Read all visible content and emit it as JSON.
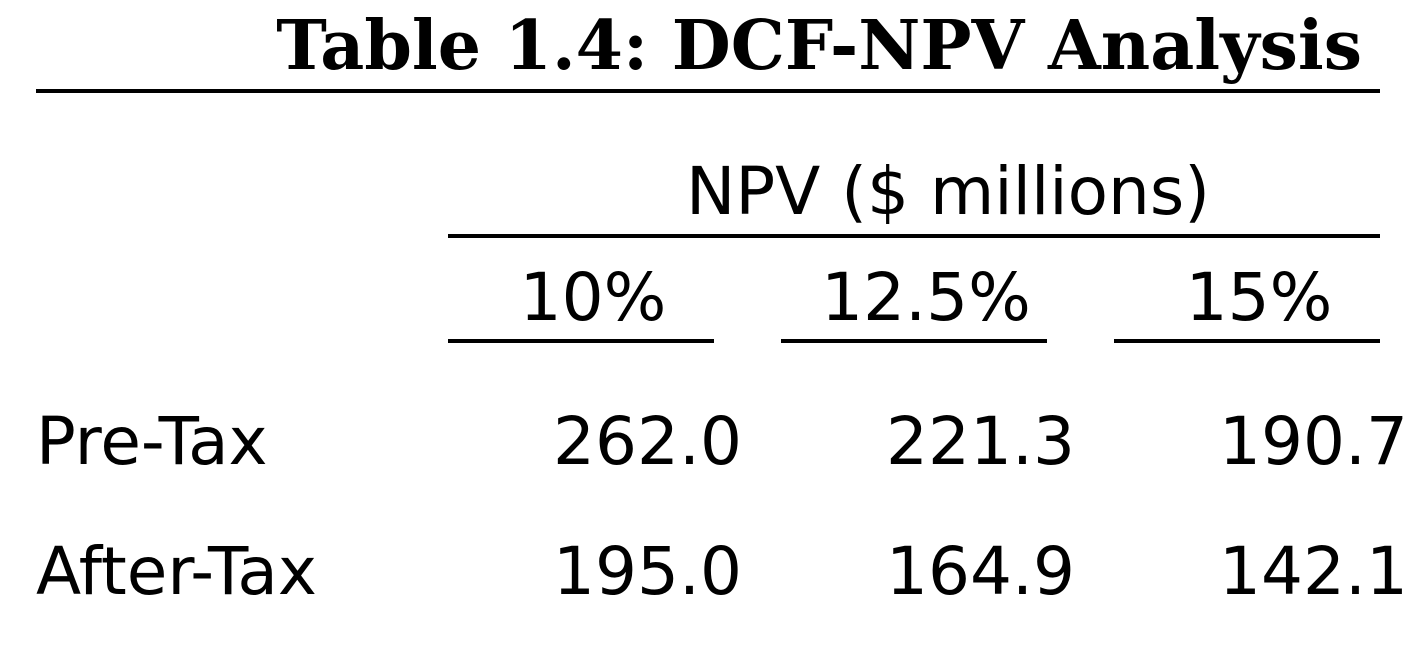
{
  "title": "Table 1.4: DCF-NPV Analysis",
  "group_header": "NPV ($ millions)",
  "columns": [
    "10%",
    "12.5%",
    "15%"
  ],
  "rows": [
    {
      "label": "Pre-Tax",
      "values": [
        "262.0",
        "221.3",
        "190.7"
      ]
    },
    {
      "label": "After-Tax",
      "values": [
        "195.0",
        "164.9",
        "142.1"
      ]
    }
  ]
}
